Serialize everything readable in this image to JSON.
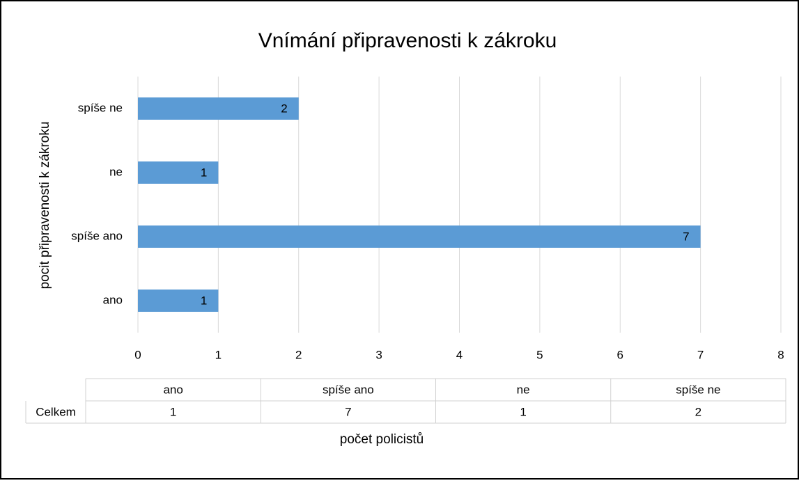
{
  "chart_data": {
    "type": "bar",
    "orientation": "horizontal",
    "title": "Vnímání připravenosti k zákroku",
    "x_label": "počet policistů",
    "y_label": "pocit připravenosti k zákroku",
    "categories": [
      "ano",
      "spíše ano",
      "ne",
      "spíše ne"
    ],
    "series": [
      {
        "name": "Celkem",
        "color": "#5b9bd5",
        "values": [
          1,
          7,
          1,
          2
        ]
      }
    ],
    "xlim": [
      0,
      8
    ],
    "xticks": [
      0,
      1,
      2,
      3,
      4,
      5,
      6,
      7,
      8
    ],
    "grid": true,
    "data_table": true
  }
}
